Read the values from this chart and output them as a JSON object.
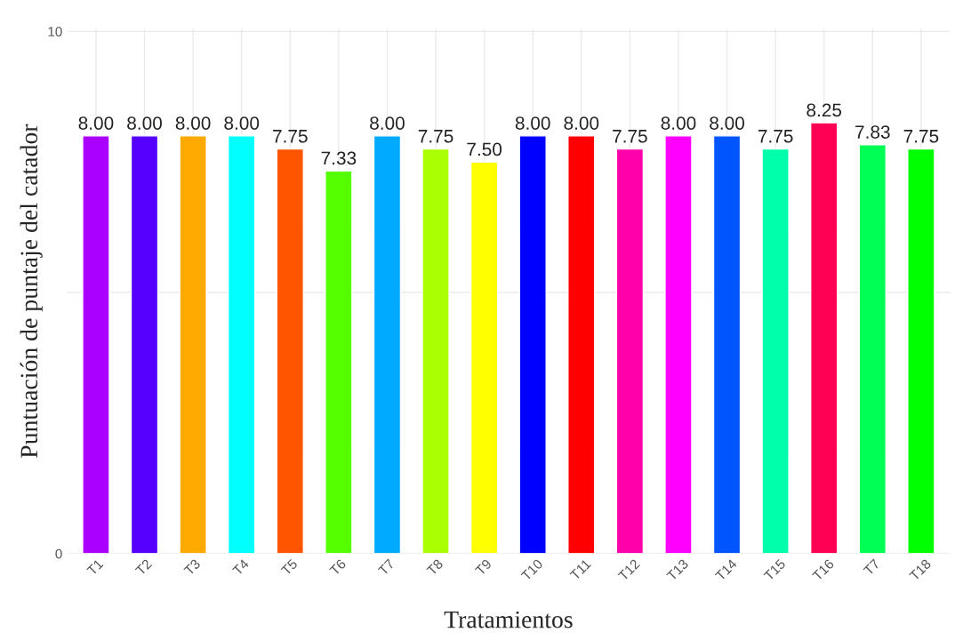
{
  "chart_data": {
    "type": "bar",
    "xlabel": "Tratamientos",
    "ylabel": "Puntuación de puntaje del catador",
    "categories": [
      "T1",
      "T2",
      "T3",
      "T4",
      "T5",
      "T6",
      "T7",
      "T8",
      "T9",
      "T10",
      "T11",
      "T12",
      "T13",
      "T14",
      "T15",
      "T16",
      "T7",
      "T18"
    ],
    "values": [
      8.0,
      8.0,
      8.0,
      8.0,
      7.75,
      7.33,
      8.0,
      7.75,
      7.5,
      8.0,
      8.0,
      7.75,
      8.0,
      8.0,
      7.75,
      8.25,
      7.83,
      7.75
    ],
    "value_labels": [
      "8.00",
      "8.00",
      "8.00",
      "8.00",
      "7.75",
      "7.33",
      "8.00",
      "7.75",
      "7.50",
      "8.00",
      "8.00",
      "7.75",
      "8.00",
      "8.00",
      "7.75",
      "8.25",
      "7.83",
      "7.75"
    ],
    "colors": [
      "#aa00ff",
      "#5500ff",
      "#ffaa00",
      "#00ffff",
      "#ff5500",
      "#55ff00",
      "#00aaff",
      "#aaff00",
      "#ffff00",
      "#0000ff",
      "#ff0000",
      "#ff00aa",
      "#ff00ff",
      "#0055ff",
      "#00ffaa",
      "#ff0055",
      "#00ff55",
      "#00ff00"
    ],
    "ylim": [
      0,
      10.05
    ],
    "yticks": [
      0,
      {
        "value": 5,
        "label": null
      },
      10
    ],
    "grid": true
  }
}
